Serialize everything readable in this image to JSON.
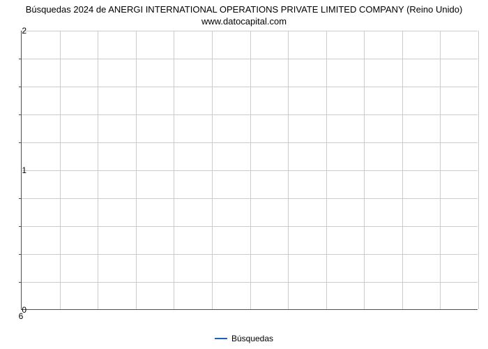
{
  "chart": {
    "type": "line",
    "title_line1": "Búsquedas 2024 de ANERGI INTERNATIONAL OPERATIONS PRIVATE LIMITED COMPANY (Reino Unido)",
    "title_line2": "www.datocapital.com",
    "title_fontsize": 13,
    "title_color": "#000000",
    "background_color": "#ffffff",
    "axis_color": "#4d4d4d",
    "grid_color": "#cccccc",
    "tick_fontsize": 12,
    "ylim": [
      0,
      2
    ],
    "y_major_ticks": [
      0,
      1,
      2
    ],
    "y_minor_per_major": 5,
    "x_ticks": [
      6
    ],
    "x_grid_count": 12,
    "series": [
      {
        "name": "Búsquedas",
        "color": "#1f5fbf",
        "line_width": 2,
        "data": []
      }
    ],
    "legend_fontsize": 12
  }
}
